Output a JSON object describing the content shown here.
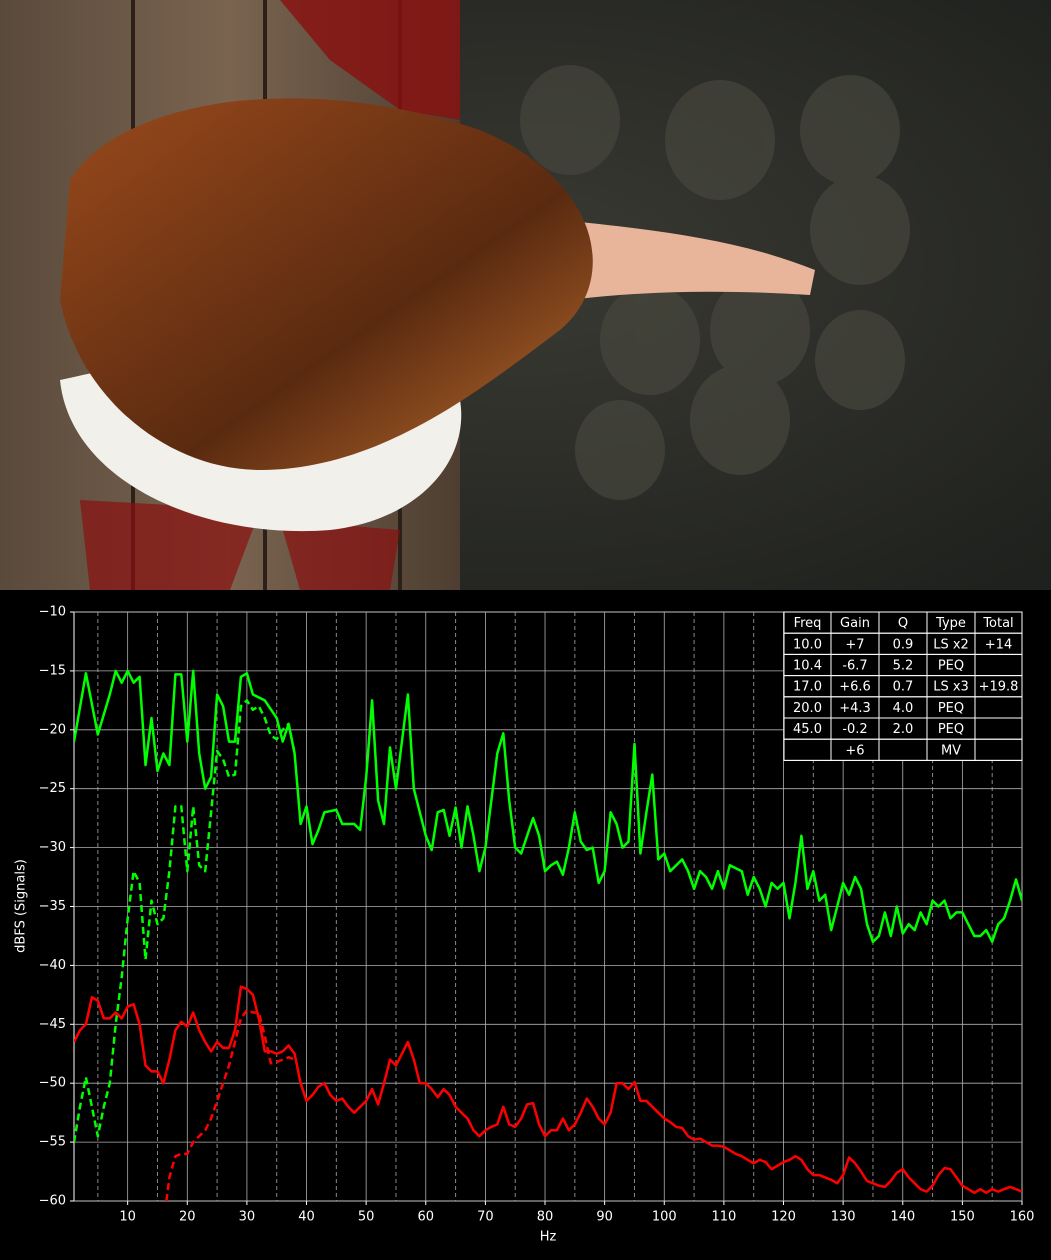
{
  "chart_data": {
    "type": "line",
    "xlabel": "Hz",
    "ylabel": "dBFS (Signals)",
    "xlim": [
      1,
      160
    ],
    "ylim": [
      -60,
      -10
    ],
    "xticks": [
      10,
      20,
      30,
      40,
      50,
      60,
      70,
      80,
      90,
      100,
      110,
      120,
      130,
      140,
      150,
      160
    ],
    "x_minor_ticks": [
      5,
      15,
      25,
      35,
      45,
      55,
      65,
      75,
      85,
      95,
      105,
      115,
      125,
      135,
      145,
      155
    ],
    "yticks": [
      {
        "value": -10,
        "label": "−10"
      },
      {
        "value": -15,
        "label": "−15"
      },
      {
        "value": -20,
        "label": "−20"
      },
      {
        "value": -25,
        "label": "−25"
      },
      {
        "value": -30,
        "label": "−30"
      },
      {
        "value": -35,
        "label": "−35"
      },
      {
        "value": -40,
        "label": "−40"
      },
      {
        "value": -45,
        "label": "−45"
      },
      {
        "value": -50,
        "label": "−50"
      },
      {
        "value": -55,
        "label": "−55"
      },
      {
        "value": -60,
        "label": "−60"
      }
    ],
    "grid": true,
    "series": [
      {
        "color": "#00ff00",
        "dash": false,
        "x": [
          1,
          3,
          5,
          7,
          8,
          9,
          10,
          11,
          12,
          13,
          14,
          15,
          16,
          17,
          18,
          19,
          20,
          21,
          22,
          23,
          24,
          25,
          26,
          27,
          28,
          29,
          30,
          31,
          33,
          35,
          36,
          37,
          38,
          39,
          40,
          41,
          42,
          43,
          45,
          46,
          48,
          49,
          50,
          51,
          52,
          53,
          54,
          55,
          56,
          57,
          58,
          59,
          60,
          61,
          62,
          63,
          64,
          65,
          66,
          67,
          68,
          69,
          70,
          72,
          73,
          74,
          75,
          76,
          77,
          78,
          79,
          80,
          81,
          82,
          83,
          84,
          85,
          86,
          87,
          88,
          89,
          90,
          91,
          92,
          93,
          94,
          95,
          96,
          97,
          98,
          99,
          100,
          101,
          103,
          104,
          105,
          106,
          107,
          108,
          109,
          110,
          111,
          113,
          114,
          115,
          116,
          117,
          118,
          119,
          120,
          121,
          122,
          123,
          124,
          125,
          126,
          127,
          128,
          129,
          130,
          131,
          132,
          133,
          134,
          135,
          136,
          137,
          138,
          139,
          140,
          141,
          142,
          143,
          144,
          145,
          146,
          147,
          148,
          149,
          150,
          151,
          152,
          153,
          154,
          155,
          156,
          157,
          158,
          159,
          160
        ],
        "values": [
          -21,
          -15.2,
          -20.4,
          -17,
          -15,
          -16,
          -15,
          -16,
          -15.5,
          -23,
          -19,
          -23.5,
          -22,
          -23,
          -15.3,
          -15.3,
          -21,
          -15,
          -22,
          -25,
          -24,
          -17,
          -18,
          -21,
          -21,
          -15.5,
          -15.2,
          -17,
          -17.5,
          -19,
          -21,
          -19.5,
          -22,
          -28,
          -26.5,
          -29.7,
          -28.5,
          -27,
          -26.8,
          -28,
          -28,
          -28.5,
          -24,
          -17.5,
          -26,
          -28,
          -21.5,
          -25,
          -21,
          -17,
          -25,
          -27,
          -29,
          -30.2,
          -27,
          -26.8,
          -29,
          -26.6,
          -30,
          -26.5,
          -29,
          -32,
          -30,
          -22,
          -20.3,
          -26,
          -30,
          -30.5,
          -29,
          -27.5,
          -29,
          -32,
          -31.5,
          -31.2,
          -32.3,
          -30,
          -27,
          -29.5,
          -30.2,
          -30,
          -33,
          -32,
          -27,
          -28,
          -30,
          -29.5,
          -21.2,
          -30.5,
          -27,
          -23.8,
          -31,
          -30.5,
          -32,
          -31,
          -32,
          -33.5,
          -32,
          -32.5,
          -33.5,
          -32,
          -33.5,
          -31.5,
          -32,
          -34,
          -32.5,
          -33.5,
          -35,
          -33,
          -33.5,
          -33,
          -36,
          -33,
          -29,
          -33.5,
          -32,
          -34.5,
          -34,
          -37,
          -35,
          -33,
          -34,
          -32.5,
          -33.5,
          -36.5,
          -38,
          -37.5,
          -35.5,
          -37.5,
          -35,
          -37.3,
          -36.5,
          -37,
          -35.5,
          -36.5,
          -34.5,
          -35,
          -34.5,
          -36,
          -35.5,
          -35.5,
          -36.5,
          -37.5,
          -37.5,
          -37,
          -38,
          -36.5,
          -36,
          -34.5,
          -32.7,
          -34.5
        ]
      },
      {
        "color": "#00ff00",
        "dash": true,
        "x": [
          1,
          2,
          3,
          4,
          5,
          6,
          7,
          8,
          9,
          10,
          11,
          12,
          13,
          14,
          15,
          16,
          17,
          18,
          19,
          20,
          21,
          22,
          23,
          24,
          25,
          26,
          27,
          28,
          29,
          30,
          31,
          32,
          33,
          34,
          35,
          36,
          37,
          38
        ],
        "values": [
          -55,
          -52,
          -49.5,
          -52,
          -54.5,
          -52,
          -50,
          -45,
          -41,
          -36,
          -32,
          -33,
          -39.5,
          -34.5,
          -36.5,
          -36,
          -32,
          -26.5,
          -26.5,
          -32,
          -26.5,
          -31.5,
          -32,
          -27,
          -21.8,
          -22.5,
          -24,
          -23.8,
          -18,
          -17.5,
          -18.3,
          -18,
          -19,
          -20.5,
          -20.8,
          -20,
          -19.5,
          -22
        ]
      },
      {
        "color": "#ff0000",
        "dash": false,
        "x": [
          1,
          2,
          3,
          4,
          5,
          6,
          7,
          8,
          9,
          10,
          11,
          12,
          13,
          14,
          15,
          16,
          17,
          18,
          19,
          20,
          21,
          22,
          23,
          24,
          25,
          26,
          27,
          28,
          29,
          30,
          31,
          32,
          33,
          34,
          35,
          36,
          37,
          38,
          39,
          40,
          41,
          42,
          43,
          44,
          45,
          46,
          47,
          48,
          49,
          50,
          51,
          52,
          53,
          54,
          55,
          56,
          57,
          58,
          59,
          60,
          61,
          62,
          63,
          64,
          65,
          66,
          67,
          68,
          69,
          70,
          71,
          72,
          73,
          74,
          75,
          76,
          77,
          78,
          79,
          80,
          81,
          82,
          83,
          84,
          85,
          86,
          87,
          88,
          89,
          90,
          91,
          92,
          93,
          94,
          95,
          96,
          97,
          98,
          99,
          100,
          101,
          102,
          103,
          104,
          105,
          106,
          107,
          108,
          109,
          110,
          111,
          112,
          113,
          114,
          115,
          116,
          117,
          118,
          119,
          120,
          121,
          122,
          123,
          124,
          125,
          126,
          127,
          128,
          129,
          130,
          131,
          132,
          133,
          134,
          135,
          136,
          137,
          138,
          139,
          140,
          141,
          142,
          143,
          144,
          145,
          146,
          147,
          148,
          149,
          150,
          151,
          152,
          153,
          154,
          155,
          156,
          157,
          158,
          159,
          160
        ],
        "values": [
          -46.5,
          -45.5,
          -45,
          -42.7,
          -43,
          -44.5,
          -44.5,
          -44,
          -44.5,
          -43.5,
          -43.3,
          -45,
          -48.5,
          -49,
          -49,
          -50,
          -48,
          -45.5,
          -44.8,
          -45.2,
          -44,
          -45.5,
          -46.5,
          -47.3,
          -46.5,
          -47,
          -47,
          -45.5,
          -41.8,
          -42,
          -42.5,
          -44.5,
          -47.3,
          -47.3,
          -47.5,
          -47.3,
          -46.8,
          -47.5,
          -50,
          -51.5,
          -51,
          -50.3,
          -50,
          -51,
          -51.5,
          -51.3,
          -52,
          -52.5,
          -52,
          -51.5,
          -50.5,
          -51.8,
          -50,
          -48,
          -48.5,
          -47.5,
          -46.5,
          -48,
          -50,
          -50,
          -50.5,
          -51.2,
          -50.5,
          -51,
          -52,
          -52.5,
          -53,
          -54,
          -54.5,
          -54,
          -53.7,
          -53.5,
          -52,
          -53.5,
          -53.7,
          -53,
          -51.8,
          -51.7,
          -53.5,
          -54.5,
          -54,
          -54,
          -53,
          -54,
          -53.5,
          -52.5,
          -51.3,
          -52,
          -53,
          -53.5,
          -52.5,
          -50,
          -50,
          -50.5,
          -49.9,
          -51.5,
          -51.5,
          -52,
          -52.5,
          -53,
          -53.3,
          -53.7,
          -53.8,
          -54.5,
          -54.8,
          -54.7,
          -55,
          -55.3,
          -55.3,
          -55.4,
          -55.7,
          -56,
          -56.2,
          -56.5,
          -56.8,
          -56.5,
          -56.7,
          -57.3,
          -57,
          -56.7,
          -56.5,
          -56.2,
          -56.5,
          -57.3,
          -57.8,
          -57.8,
          -58,
          -58.2,
          -58.5,
          -57.8,
          -56.3,
          -56.8,
          -57.5,
          -58.3,
          -58.5,
          -58.7,
          -58.8,
          -58.3,
          -57.6,
          -57.3,
          -58,
          -58.5,
          -59,
          -59.2,
          -58.7,
          -57.8,
          -57.2,
          -57.3,
          -58,
          -58.7,
          -59,
          -59.3,
          -59,
          -59.3,
          -59,
          -59.2,
          -59,
          -58.8,
          -59,
          -59.2
        ]
      },
      {
        "color": "#ff0000",
        "dash": true,
        "x": [
          16.5,
          17,
          18,
          19,
          20,
          21,
          22,
          23,
          24,
          25,
          26,
          27,
          28,
          29,
          30,
          31,
          32,
          33,
          34,
          35,
          36,
          37,
          38
        ],
        "values": [
          -60,
          -58,
          -56.2,
          -56,
          -56,
          -55,
          -54.5,
          -54,
          -53,
          -51.5,
          -50,
          -48.5,
          -46.5,
          -44.5,
          -43.8,
          -44,
          -44,
          -46,
          -48.3,
          -48.2,
          -48,
          -47.8,
          -48
        ]
      }
    ],
    "table": {
      "columns": [
        "Freq",
        "Gain",
        "Q",
        "Type",
        "Total"
      ],
      "rows": [
        [
          "10.0",
          "+7",
          "0.9",
          "LS x2",
          "+14"
        ],
        [
          "10.4",
          "-6.7",
          "5.2",
          "PEQ",
          null
        ],
        [
          "17.0",
          "+6.6",
          "0.7",
          "LS x3",
          "+19.8"
        ],
        [
          "20.0",
          "+4.3",
          "4.0",
          "PEQ",
          null
        ],
        [
          "45.0",
          "-0.2",
          "2.0",
          "PEQ",
          null
        ],
        [
          null,
          "+6",
          null,
          "MV",
          null
        ]
      ]
    }
  }
}
